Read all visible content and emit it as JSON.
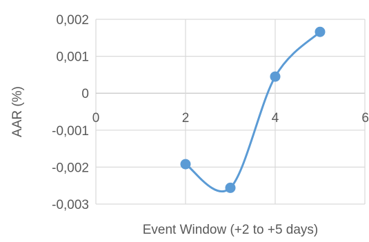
{
  "chart_data": {
    "type": "scatter",
    "smooth": true,
    "title": "",
    "xlabel": "Event Window (+2 to +5 days)",
    "ylabel": "AAR (%)",
    "xlim": [
      0,
      6
    ],
    "ylim": [
      -0.003,
      0.002
    ],
    "x_ticks": [
      0,
      2,
      4,
      6
    ],
    "x_tick_labels": [
      "0",
      "2",
      "4",
      "6"
    ],
    "y_ticks": [
      0.002,
      0.001,
      0,
      -0.001,
      -0.002,
      -0.003
    ],
    "y_tick_labels": [
      "0,002",
      "0,001",
      "0",
      "-0,001",
      "-0,002",
      "-0,003"
    ],
    "grid": true,
    "legend": false,
    "color": "#5b9bd5",
    "series": [
      {
        "x": [
          2,
          3,
          4,
          5
        ],
        "y": [
          -0.00192,
          -0.00256,
          0.00045,
          0.00166
        ]
      }
    ]
  }
}
